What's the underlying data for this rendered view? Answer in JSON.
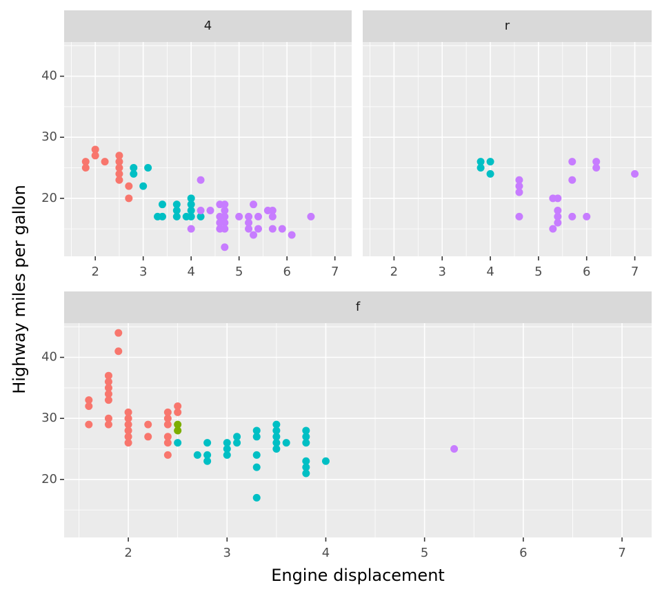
{
  "chart_data": {
    "type": "scatter",
    "xlabel": "Engine displacement",
    "ylabel": "Highway miles per gallon",
    "colors": {
      "4": "#F8766D",
      "5": "#7CAE00",
      "6": "#00BFC4",
      "8": "#C77CFF"
    },
    "panels": [
      {
        "strip": "4",
        "xlim": [
          1.35,
          7.35
        ],
        "ylim": [
          10.5,
          45.6
        ],
        "xticks": [
          2,
          3,
          4,
          5,
          6,
          7
        ],
        "yticks": [
          20,
          30,
          40
        ],
        "points": [
          {
            "x": 1.8,
            "y": 26,
            "cyl": "4"
          },
          {
            "x": 1.8,
            "y": 25,
            "cyl": "4"
          },
          {
            "x": 2.0,
            "y": 28,
            "cyl": "4"
          },
          {
            "x": 2.0,
            "y": 27,
            "cyl": "4"
          },
          {
            "x": 2.2,
            "y": 26,
            "cyl": "4"
          },
          {
            "x": 2.5,
            "y": 27,
            "cyl": "4"
          },
          {
            "x": 2.5,
            "y": 26,
            "cyl": "4"
          },
          {
            "x": 2.5,
            "y": 25,
            "cyl": "4"
          },
          {
            "x": 2.5,
            "y": 24,
            "cyl": "4"
          },
          {
            "x": 2.5,
            "y": 23,
            "cyl": "4"
          },
          {
            "x": 2.7,
            "y": 22,
            "cyl": "4"
          },
          {
            "x": 2.7,
            "y": 20,
            "cyl": "4"
          },
          {
            "x": 2.8,
            "y": 25,
            "cyl": "6"
          },
          {
            "x": 2.8,
            "y": 24,
            "cyl": "6"
          },
          {
            "x": 3.0,
            "y": 22,
            "cyl": "6"
          },
          {
            "x": 3.1,
            "y": 25,
            "cyl": "6"
          },
          {
            "x": 3.3,
            "y": 17,
            "cyl": "6"
          },
          {
            "x": 3.4,
            "y": 19,
            "cyl": "6"
          },
          {
            "x": 3.4,
            "y": 17,
            "cyl": "6"
          },
          {
            "x": 3.7,
            "y": 19,
            "cyl": "6"
          },
          {
            "x": 3.7,
            "y": 18,
            "cyl": "6"
          },
          {
            "x": 3.7,
            "y": 17,
            "cyl": "6"
          },
          {
            "x": 3.9,
            "y": 17,
            "cyl": "6"
          },
          {
            "x": 4.0,
            "y": 20,
            "cyl": "6"
          },
          {
            "x": 4.0,
            "y": 19,
            "cyl": "6"
          },
          {
            "x": 4.0,
            "y": 18,
            "cyl": "6"
          },
          {
            "x": 4.0,
            "y": 17,
            "cyl": "6"
          },
          {
            "x": 4.2,
            "y": 17,
            "cyl": "6"
          },
          {
            "x": 4.0,
            "y": 15,
            "cyl": "8"
          },
          {
            "x": 4.2,
            "y": 23,
            "cyl": "8"
          },
          {
            "x": 4.2,
            "y": 18,
            "cyl": "8"
          },
          {
            "x": 4.4,
            "y": 18,
            "cyl": "8"
          },
          {
            "x": 4.6,
            "y": 19,
            "cyl": "8"
          },
          {
            "x": 4.7,
            "y": 19,
            "cyl": "8"
          },
          {
            "x": 4.7,
            "y": 18,
            "cyl": "8"
          },
          {
            "x": 4.6,
            "y": 17,
            "cyl": "8"
          },
          {
            "x": 4.7,
            "y": 17,
            "cyl": "8"
          },
          {
            "x": 4.6,
            "y": 16,
            "cyl": "8"
          },
          {
            "x": 4.7,
            "y": 16,
            "cyl": "8"
          },
          {
            "x": 4.6,
            "y": 15,
            "cyl": "8"
          },
          {
            "x": 4.7,
            "y": 15,
            "cyl": "8"
          },
          {
            "x": 4.7,
            "y": 12,
            "cyl": "8"
          },
          {
            "x": 5.0,
            "y": 17,
            "cyl": "8"
          },
          {
            "x": 5.2,
            "y": 17,
            "cyl": "8"
          },
          {
            "x": 5.2,
            "y": 16,
            "cyl": "8"
          },
          {
            "x": 5.2,
            "y": 15,
            "cyl": "8"
          },
          {
            "x": 5.3,
            "y": 19,
            "cyl": "8"
          },
          {
            "x": 5.3,
            "y": 14,
            "cyl": "8"
          },
          {
            "x": 5.4,
            "y": 17,
            "cyl": "8"
          },
          {
            "x": 5.4,
            "y": 15,
            "cyl": "8"
          },
          {
            "x": 5.6,
            "y": 18,
            "cyl": "8"
          },
          {
            "x": 5.7,
            "y": 18,
            "cyl": "8"
          },
          {
            "x": 5.7,
            "y": 17,
            "cyl": "8"
          },
          {
            "x": 5.7,
            "y": 15,
            "cyl": "8"
          },
          {
            "x": 5.9,
            "y": 15,
            "cyl": "8"
          },
          {
            "x": 6.1,
            "y": 14,
            "cyl": "8"
          },
          {
            "x": 6.5,
            "y": 17,
            "cyl": "8"
          }
        ]
      },
      {
        "strip": "r",
        "xlim": [
          1.35,
          7.35
        ],
        "ylim": [
          10.5,
          45.6
        ],
        "xticks": [
          2,
          3,
          4,
          5,
          6,
          7
        ],
        "yticks": [
          20,
          30,
          40
        ],
        "points": [
          {
            "x": 3.8,
            "y": 26,
            "cyl": "6"
          },
          {
            "x": 3.8,
            "y": 25,
            "cyl": "6"
          },
          {
            "x": 4.0,
            "y": 26,
            "cyl": "6"
          },
          {
            "x": 4.0,
            "y": 24,
            "cyl": "6"
          },
          {
            "x": 4.6,
            "y": 23,
            "cyl": "8"
          },
          {
            "x": 4.6,
            "y": 22,
            "cyl": "8"
          },
          {
            "x": 4.6,
            "y": 21,
            "cyl": "8"
          },
          {
            "x": 4.6,
            "y": 17,
            "cyl": "8"
          },
          {
            "x": 5.3,
            "y": 20,
            "cyl": "8"
          },
          {
            "x": 5.4,
            "y": 20,
            "cyl": "8"
          },
          {
            "x": 5.3,
            "y": 15,
            "cyl": "8"
          },
          {
            "x": 5.4,
            "y": 18,
            "cyl": "8"
          },
          {
            "x": 5.4,
            "y": 17,
            "cyl": "8"
          },
          {
            "x": 5.4,
            "y": 16,
            "cyl": "8"
          },
          {
            "x": 5.7,
            "y": 26,
            "cyl": "8"
          },
          {
            "x": 5.7,
            "y": 23,
            "cyl": "8"
          },
          {
            "x": 5.7,
            "y": 17,
            "cyl": "8"
          },
          {
            "x": 6.0,
            "y": 17,
            "cyl": "8"
          },
          {
            "x": 6.2,
            "y": 26,
            "cyl": "8"
          },
          {
            "x": 6.2,
            "y": 25,
            "cyl": "8"
          },
          {
            "x": 7.0,
            "y": 24,
            "cyl": "8"
          }
        ]
      },
      {
        "strip": "f",
        "xlim": [
          1.35,
          7.3
        ],
        "ylim": [
          10.5,
          45.6
        ],
        "xticks": [
          2,
          3,
          4,
          5,
          6,
          7
        ],
        "yticks": [
          20,
          30,
          40
        ],
        "points": [
          {
            "x": 1.6,
            "y": 33,
            "cyl": "4"
          },
          {
            "x": 1.6,
            "y": 32,
            "cyl": "4"
          },
          {
            "x": 1.6,
            "y": 29,
            "cyl": "4"
          },
          {
            "x": 1.8,
            "y": 37,
            "cyl": "4"
          },
          {
            "x": 1.8,
            "y": 36,
            "cyl": "4"
          },
          {
            "x": 1.8,
            "y": 35,
            "cyl": "4"
          },
          {
            "x": 1.8,
            "y": 34,
            "cyl": "4"
          },
          {
            "x": 1.8,
            "y": 33,
            "cyl": "4"
          },
          {
            "x": 1.8,
            "y": 30,
            "cyl": "4"
          },
          {
            "x": 1.8,
            "y": 29,
            "cyl": "4"
          },
          {
            "x": 1.9,
            "y": 44,
            "cyl": "4"
          },
          {
            "x": 1.9,
            "y": 41,
            "cyl": "4"
          },
          {
            "x": 2.0,
            "y": 31,
            "cyl": "4"
          },
          {
            "x": 2.0,
            "y": 30,
            "cyl": "4"
          },
          {
            "x": 2.0,
            "y": 29,
            "cyl": "4"
          },
          {
            "x": 2.0,
            "y": 28,
            "cyl": "4"
          },
          {
            "x": 2.0,
            "y": 27,
            "cyl": "4"
          },
          {
            "x": 2.0,
            "y": 26,
            "cyl": "4"
          },
          {
            "x": 2.2,
            "y": 29,
            "cyl": "4"
          },
          {
            "x": 2.2,
            "y": 27,
            "cyl": "4"
          },
          {
            "x": 2.4,
            "y": 31,
            "cyl": "4"
          },
          {
            "x": 2.4,
            "y": 30,
            "cyl": "4"
          },
          {
            "x": 2.4,
            "y": 29,
            "cyl": "4"
          },
          {
            "x": 2.4,
            "y": 27,
            "cyl": "4"
          },
          {
            "x": 2.4,
            "y": 26,
            "cyl": "4"
          },
          {
            "x": 2.4,
            "y": 24,
            "cyl": "4"
          },
          {
            "x": 2.5,
            "y": 32,
            "cyl": "4"
          },
          {
            "x": 2.5,
            "y": 31,
            "cyl": "4"
          },
          {
            "x": 2.5,
            "y": 29,
            "cyl": "5"
          },
          {
            "x": 2.5,
            "y": 28,
            "cyl": "5"
          },
          {
            "x": 2.5,
            "y": 26,
            "cyl": "6"
          },
          {
            "x": 2.7,
            "y": 24,
            "cyl": "6"
          },
          {
            "x": 2.8,
            "y": 26,
            "cyl": "6"
          },
          {
            "x": 2.8,
            "y": 24,
            "cyl": "6"
          },
          {
            "x": 2.8,
            "y": 23,
            "cyl": "6"
          },
          {
            "x": 3.0,
            "y": 26,
            "cyl": "6"
          },
          {
            "x": 3.0,
            "y": 25,
            "cyl": "6"
          },
          {
            "x": 3.0,
            "y": 24,
            "cyl": "6"
          },
          {
            "x": 3.1,
            "y": 27,
            "cyl": "6"
          },
          {
            "x": 3.1,
            "y": 26,
            "cyl": "6"
          },
          {
            "x": 3.3,
            "y": 28,
            "cyl": "6"
          },
          {
            "x": 3.3,
            "y": 27,
            "cyl": "6"
          },
          {
            "x": 3.3,
            "y": 24,
            "cyl": "6"
          },
          {
            "x": 3.3,
            "y": 22,
            "cyl": "6"
          },
          {
            "x": 3.3,
            "y": 17,
            "cyl": "6"
          },
          {
            "x": 3.5,
            "y": 29,
            "cyl": "6"
          },
          {
            "x": 3.5,
            "y": 28,
            "cyl": "6"
          },
          {
            "x": 3.5,
            "y": 27,
            "cyl": "6"
          },
          {
            "x": 3.5,
            "y": 26,
            "cyl": "6"
          },
          {
            "x": 3.5,
            "y": 25,
            "cyl": "6"
          },
          {
            "x": 3.6,
            "y": 26,
            "cyl": "6"
          },
          {
            "x": 3.8,
            "y": 28,
            "cyl": "6"
          },
          {
            "x": 3.8,
            "y": 27,
            "cyl": "6"
          },
          {
            "x": 3.8,
            "y": 26,
            "cyl": "6"
          },
          {
            "x": 3.8,
            "y": 23,
            "cyl": "6"
          },
          {
            "x": 3.8,
            "y": 22,
            "cyl": "6"
          },
          {
            "x": 3.8,
            "y": 21,
            "cyl": "6"
          },
          {
            "x": 4.0,
            "y": 23,
            "cyl": "6"
          },
          {
            "x": 5.3,
            "y": 25,
            "cyl": "8"
          }
        ]
      }
    ]
  }
}
